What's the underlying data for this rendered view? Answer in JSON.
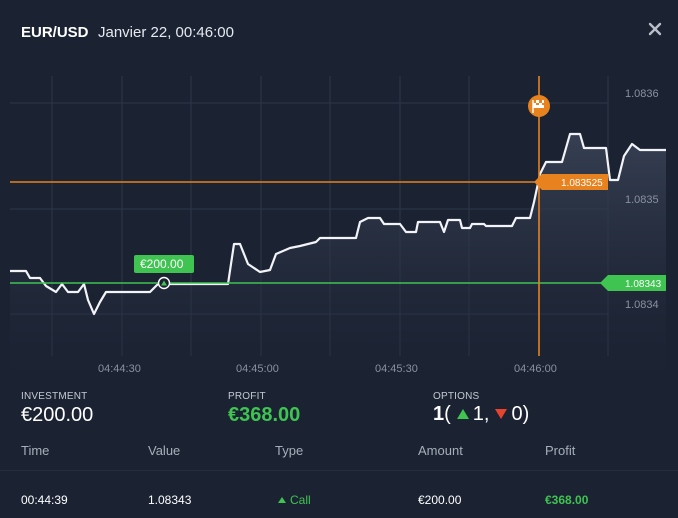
{
  "header": {
    "pair": "EUR/USD",
    "datetime": "Janvier 22, 00:46:00"
  },
  "chart": {
    "price_labels": [
      "1.0836",
      "1.0835",
      "1.0834"
    ],
    "time_labels": [
      "04:44:30",
      "04:45:00",
      "04:45:30",
      "04:46:00"
    ],
    "entry_tag": "€200.00",
    "expiry_price_tag": "1.083525",
    "current_price_tag": "1.08343"
  },
  "chart_data": {
    "type": "line",
    "x": [
      "04:44:30",
      "04:45:00",
      "04:45:30",
      "04:46:00"
    ],
    "ylim": [
      1.08335,
      1.08365
    ],
    "price_levels": [
      1.0834,
      1.0835,
      1.0836
    ],
    "entry_price": 1.08343,
    "entry_amount": "€200.00",
    "expiry_level": 1.083525,
    "expiry_time": "04:46:00",
    "grid": true
  },
  "stats": {
    "investment_label": "INVESTMENT",
    "investment_value": "€200.00",
    "profit_label": "PROFIT",
    "profit_value": "€368.00",
    "options_label": "OPTIONS",
    "options_total": "1",
    "options_open": "(",
    "options_up": "1,",
    "options_down": "0",
    "options_close": ")"
  },
  "table": {
    "headers": [
      "Time",
      "Value",
      "Type",
      "Amount",
      "Profit"
    ],
    "rows": [
      {
        "time": "00:44:39",
        "value": "1.08343",
        "type": "Call",
        "amount": "€200.00",
        "profit": "€368.00"
      }
    ]
  },
  "colors": {
    "background": "#1b2333",
    "green": "#3fc351",
    "orange": "#e8821e",
    "red": "#e8432c"
  }
}
